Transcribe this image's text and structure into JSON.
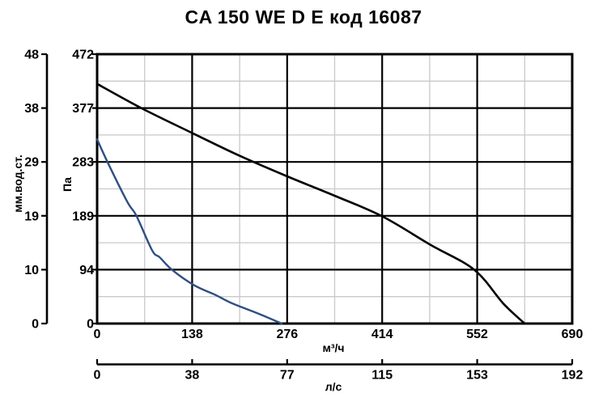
{
  "title": "CA 150 WE D E код 16087",
  "colors": {
    "background": "#ffffff",
    "text": "#000000",
    "major_grid": "#000000",
    "minor_grid": "#c9c9c9",
    "curve_black": "#000000",
    "curve_blue": "#2f4f82"
  },
  "axes": {
    "pressure_mm": {
      "label": "мм.вод.ст.",
      "ticks": [
        "48",
        "38",
        "29",
        "19",
        "10",
        "0"
      ]
    },
    "pressure_pa": {
      "label": "Па",
      "ticks": [
        "472",
        "377",
        "283",
        "189",
        "94",
        "0"
      ]
    },
    "flow_m3h": {
      "label": "м³/ч",
      "ticks": [
        "0",
        "138",
        "276",
        "414",
        "552",
        "690"
      ]
    },
    "flow_ls": {
      "label": "л/с",
      "ticks": [
        "0",
        "38",
        "77",
        "115",
        "153",
        "192"
      ]
    }
  },
  "chart_data": {
    "type": "line",
    "title": "CA 150 WE D E код 16087",
    "xlabel": "м³/ч",
    "xlabel_secondary": "л/с",
    "ylabel": "Па",
    "ylabel_secondary": "мм.вод.ст.",
    "xlim": [
      0,
      690
    ],
    "ylim": [
      0,
      472
    ],
    "x_major_ticks_m3h": [
      0,
      138,
      276,
      414,
      552,
      690
    ],
    "x_ticks_ls": [
      0,
      38,
      77,
      115,
      153,
      192
    ],
    "y_major_ticks_pa": [
      0,
      94,
      189,
      283,
      377,
      472
    ],
    "y_ticks_mm_h2o": [
      0,
      10,
      19,
      29,
      38,
      48
    ],
    "grid": "major black gridlines at labeled ticks, minor gray gridlines at half steps",
    "legend": "none",
    "series": [
      {
        "name": "fan curve high speed (black)",
        "color": "#000000",
        "points_m3h_pa": [
          [
            0,
            420
          ],
          [
            65,
            377
          ],
          [
            138,
            334
          ],
          [
            207,
            294
          ],
          [
            276,
            258
          ],
          [
            345,
            224
          ],
          [
            414,
            188
          ],
          [
            484,
            138
          ],
          [
            548,
            94
          ],
          [
            590,
            35
          ],
          [
            621,
            0
          ]
        ]
      },
      {
        "name": "fan curve low speed (blue)",
        "color": "#2f4f82",
        "points_m3h_pa": [
          [
            0,
            323
          ],
          [
            15,
            283
          ],
          [
            44,
            213
          ],
          [
            57,
            189
          ],
          [
            80,
            128
          ],
          [
            91,
            116
          ],
          [
            109,
            94
          ],
          [
            141,
            67
          ],
          [
            172,
            50
          ],
          [
            195,
            36
          ],
          [
            235,
            17
          ],
          [
            268,
            0
          ]
        ]
      }
    ]
  }
}
